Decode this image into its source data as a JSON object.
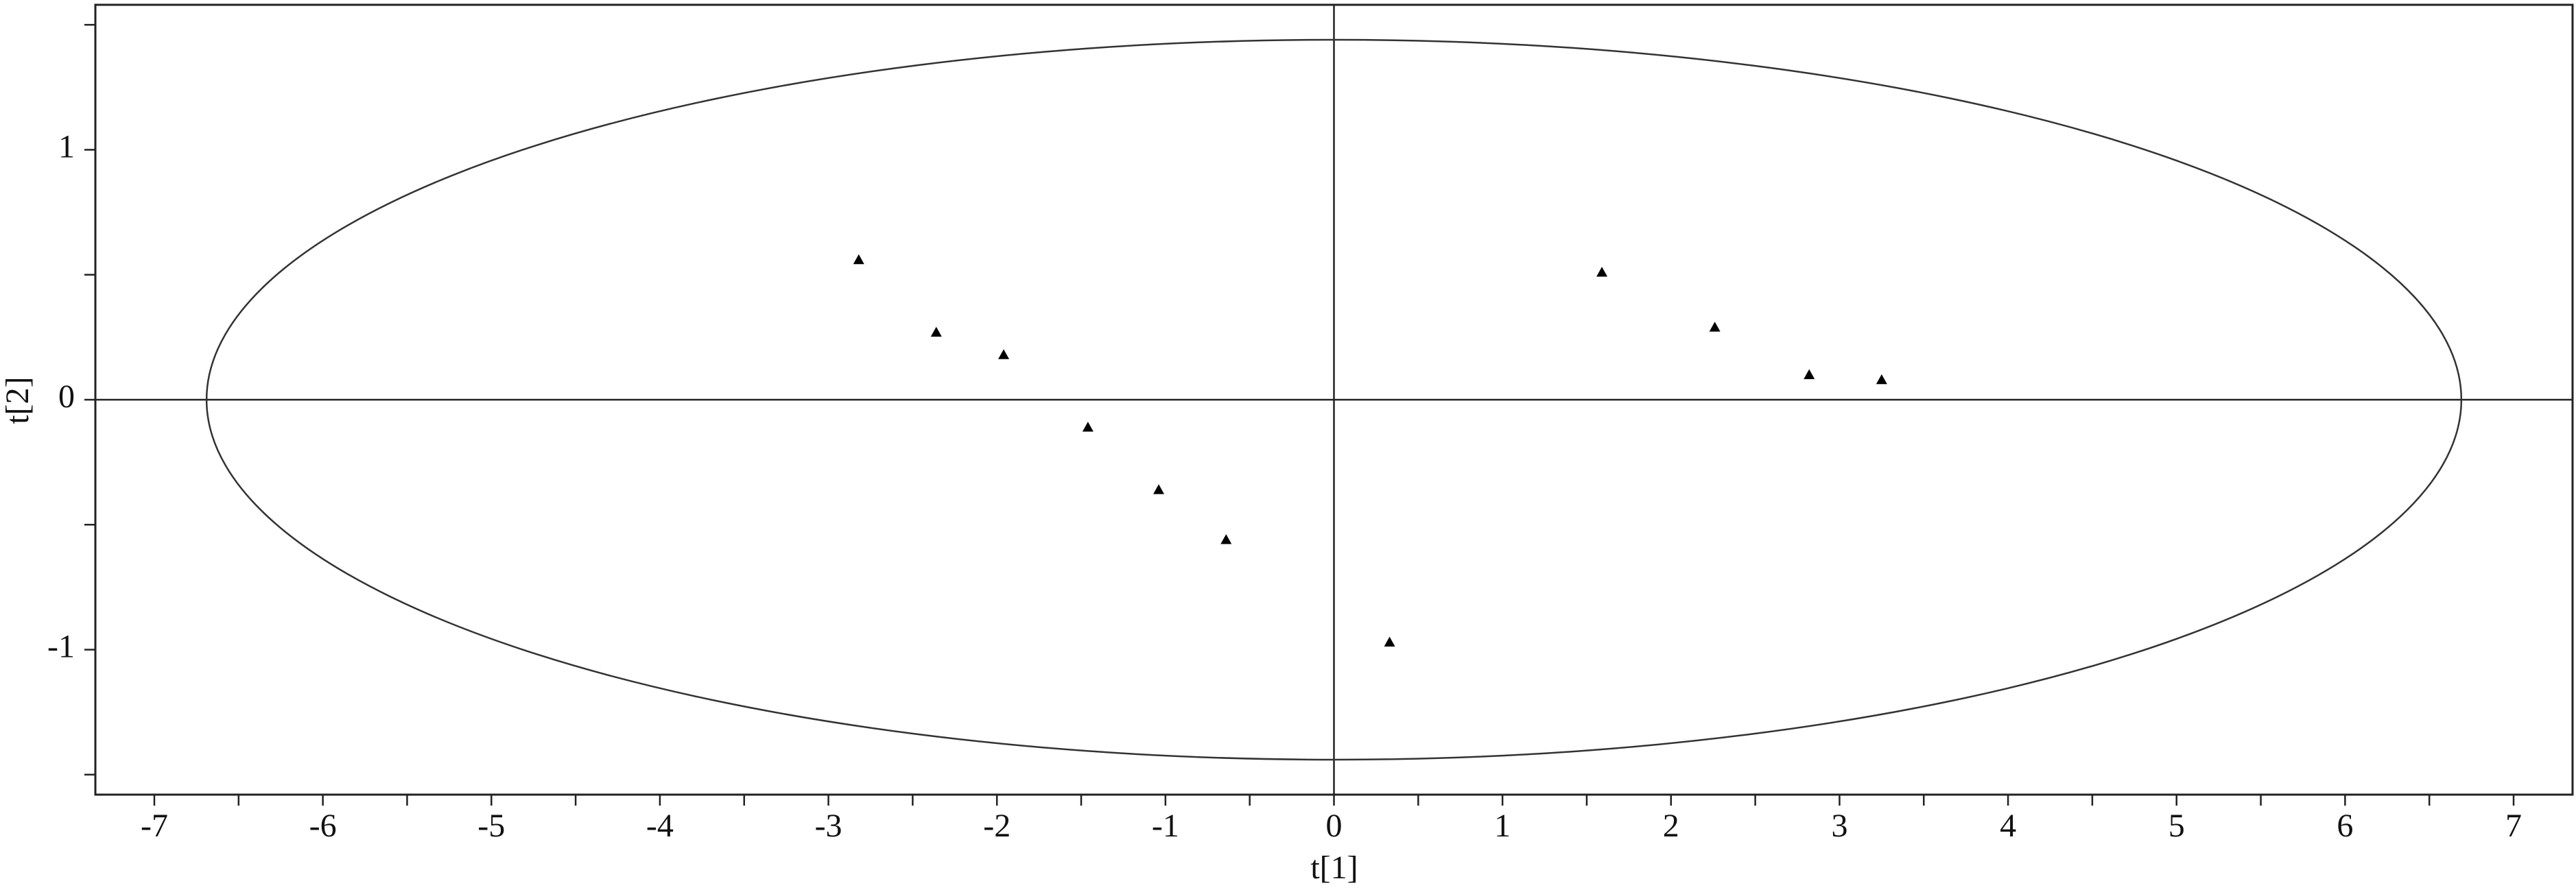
{
  "chart_data": {
    "type": "scatter",
    "x_label": "t[1]",
    "y_label": "t[2]",
    "x": [
      -2.82,
      -2.36,
      -1.96,
      -1.46,
      -1.04,
      -0.64,
      0.33,
      1.59,
      2.26,
      2.82,
      3.25
    ],
    "values": [
      0.56,
      0.27,
      0.18,
      -0.11,
      -0.36,
      -0.56,
      -0.97,
      0.51,
      0.29,
      0.1,
      0.08
    ],
    "color": "#000000",
    "xlim": [
      -7.35,
      7.35
    ],
    "ylim": [
      -1.58,
      1.58
    ],
    "xticks": [
      -7,
      -6,
      -5,
      -4,
      -3,
      -2,
      -1,
      0,
      1,
      2,
      3,
      4,
      5,
      6,
      7
    ],
    "xminorticks": [
      -6.5,
      -5.5,
      -4.5,
      -3.5,
      -2.5,
      -1.5,
      -0.5,
      0.5,
      1.5,
      2.5,
      3.5,
      4.5,
      5.5,
      6.5
    ],
    "yticks": [
      -1,
      0,
      1
    ],
    "yminorticks": [
      -1.5,
      -0.5,
      0.5,
      1.5
    ],
    "ellipse": {
      "rx": 6.69,
      "ry": 1.44
    },
    "zero_lines": true
  }
}
